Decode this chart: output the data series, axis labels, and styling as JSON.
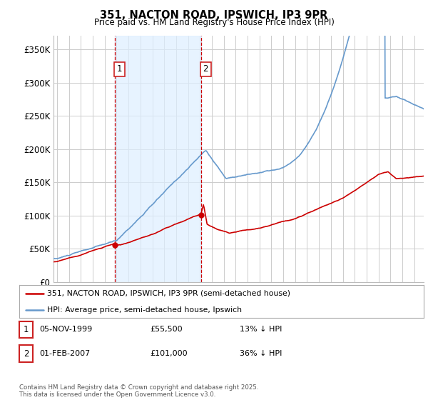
{
  "title": "351, NACTON ROAD, IPSWICH, IP3 9PR",
  "subtitle": "Price paid vs. HM Land Registry's House Price Index (HPI)",
  "ylabel_ticks": [
    "£0",
    "£50K",
    "£100K",
    "£150K",
    "£200K",
    "£250K",
    "£300K",
    "£350K"
  ],
  "ytick_values": [
    0,
    50000,
    100000,
    150000,
    200000,
    250000,
    300000,
    350000
  ],
  "ylim": [
    0,
    370000
  ],
  "xlim_start": 1994.7,
  "xlim_end": 2025.8,
  "sale1_date": 1999.85,
  "sale1_price": 55500,
  "sale1_label": "1",
  "sale2_date": 2007.08,
  "sale2_price": 101000,
  "sale2_label": "2",
  "legend_line1": "351, NACTON ROAD, IPSWICH, IP3 9PR (semi-detached house)",
  "legend_line2": "HPI: Average price, semi-detached house, Ipswich",
  "table_row1": [
    "1",
    "05-NOV-1999",
    "£55,500",
    "13% ↓ HPI"
  ],
  "table_row2": [
    "2",
    "01-FEB-2007",
    "£101,000",
    "36% ↓ HPI"
  ],
  "footer": "Contains HM Land Registry data © Crown copyright and database right 2025.\nThis data is licensed under the Open Government Licence v3.0.",
  "red_color": "#cc0000",
  "blue_color": "#6699cc",
  "shade_color": "#ddeeff",
  "background_color": "#ffffff",
  "grid_color": "#cccccc",
  "label_box_color": "#cc2222"
}
